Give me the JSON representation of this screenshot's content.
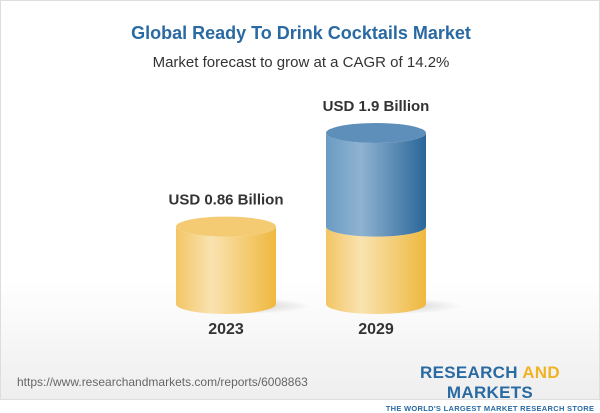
{
  "title": "Global Ready To Drink Cocktails Market",
  "subtitle": "Market forecast to grow at a CAGR of 14.2%",
  "chart_data": {
    "type": "bar",
    "style": "3d-cylinder",
    "categories": [
      "2023",
      "2029"
    ],
    "values": [
      0.86,
      1.9
    ],
    "data_labels": [
      "USD 0.86 Billion",
      "USD 1.9 Billion"
    ],
    "colors": {
      "base": "#f3c35a",
      "growth": "#3f7fb3"
    }
  },
  "footer": {
    "url": "https://www.researchandmarkets.com/reports/6008863",
    "logo_part1": "RESEARCH ",
    "logo_part2": "AND",
    "logo_part3": " MARKETS",
    "tagline": "THE WORLD'S LARGEST MARKET RESEARCH STORE"
  }
}
